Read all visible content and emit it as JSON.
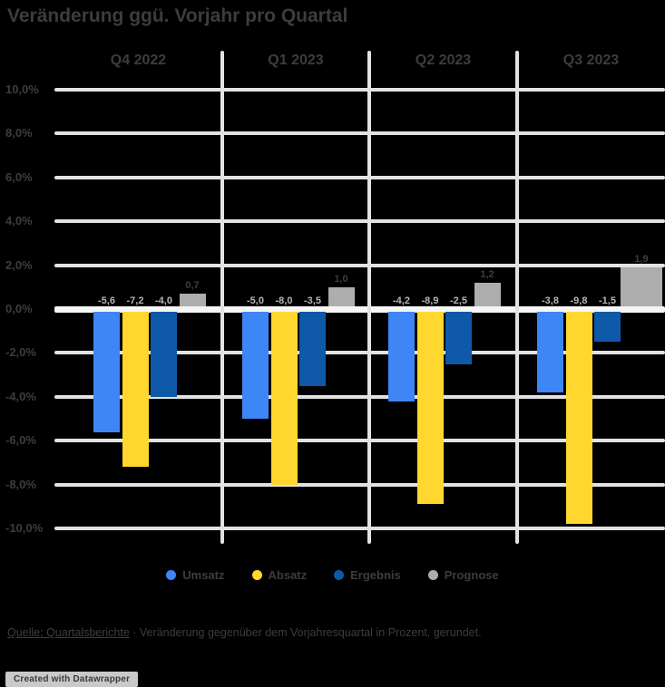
{
  "title": "Veränderung ggü. Vorjahr pro Quartal",
  "chart_data": {
    "type": "bar",
    "title": "Veränderung ggü. Vorjahr pro Quartal",
    "categories": [
      "Q4 2022",
      "Q1 2023",
      "Q2 2023",
      "Q3 2023"
    ],
    "series": [
      {
        "name": "Umsatz",
        "color": "#3e86f5",
        "values": [
          -5.6,
          -5.0,
          -4.2,
          -3.8
        ]
      },
      {
        "name": "Absatz",
        "color": "#ffd72e",
        "values": [
          -7.2,
          -8.0,
          -8.9,
          -9.8
        ]
      },
      {
        "name": "Ergebnis",
        "color": "#0e59a8",
        "values": [
          -4.0,
          -3.5,
          -2.5,
          -1.5
        ]
      },
      {
        "name": "Prognose",
        "color": "#adadad",
        "values": [
          0.7,
          1.0,
          1.2,
          1.9
        ]
      }
    ],
    "ylim": [
      -10,
      10
    ],
    "y_step": 2,
    "unit": "%",
    "decimal_separator": ",",
    "grid": true,
    "legend_position": "bottom",
    "value_labels": {
      "negative_color": "#b5b5b5",
      "positive_color": "#3f3f3f"
    },
    "tick_labels": [
      "10,0%",
      "8,0%",
      "6,0%",
      "4,0%",
      "2,0%",
      "0,0%",
      "-2,0%",
      "-4,0%",
      "-6,0%",
      "-8,0%",
      "-10,0%"
    ]
  },
  "colors": {
    "background": "#000000",
    "text_dark": "#3d3d3d",
    "gridline": "#e2e2e2",
    "zero_line": "#f5f5f5"
  },
  "footer": {
    "source_link": "Quelle: Quartalsberichte",
    "source_rest": " · Veränderung gegenüber dem Vorjahresquartal in Prozent, gerundet."
  },
  "badge": {
    "label": "Created with Datawrapper"
  }
}
